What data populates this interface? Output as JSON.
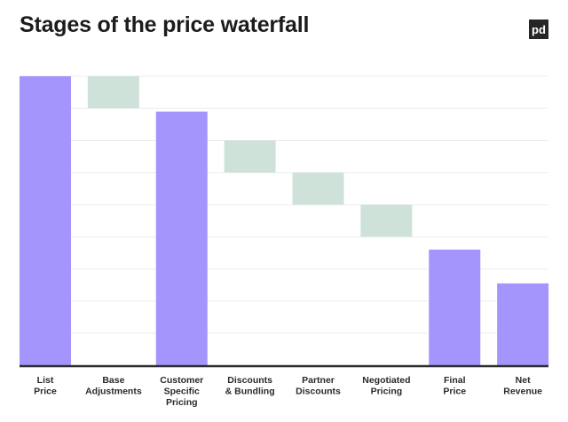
{
  "chart_data": {
    "type": "bar",
    "subtype": "waterfall",
    "title": "Stages of the price waterfall",
    "categories": [
      "List Price",
      "Base Adjustments",
      "Customer Specific Pricing",
      "Discounts & Bundling",
      "Partner Discounts",
      "Negotiated Pricing",
      "Final Price",
      "Net Revenue"
    ],
    "category_lines": [
      [
        "List",
        "Price"
      ],
      [
        "Base",
        "Adjustments"
      ],
      [
        "Customer",
        "Specific",
        "Pricing"
      ],
      [
        "Discounts",
        "& Bundling"
      ],
      [
        "Partner",
        "Discounts"
      ],
      [
        "Negotiated",
        "Pricing"
      ],
      [
        "Final",
        "Price"
      ],
      [
        "Net",
        "Revenue"
      ]
    ],
    "bars": [
      {
        "kind": "total",
        "start": 0,
        "end": 9
      },
      {
        "kind": "step",
        "start": 9,
        "end": 8
      },
      {
        "kind": "total",
        "start": 0,
        "end": 7.9
      },
      {
        "kind": "step",
        "start": 7,
        "end": 6
      },
      {
        "kind": "step",
        "start": 6,
        "end": 5
      },
      {
        "kind": "step",
        "start": 5,
        "end": 4
      },
      {
        "kind": "total",
        "start": 0,
        "end": 3.6
      },
      {
        "kind": "total",
        "start": 0,
        "end": 2.55
      }
    ],
    "ylim": [
      0,
      9
    ],
    "y_tick_labels": false,
    "grid": true,
    "colors": {
      "total": "#a395fb",
      "step": "#cfe2da",
      "baseline": "#2b2b2b",
      "grid": "#eeeeee"
    }
  },
  "logo": {
    "text": "pd"
  }
}
